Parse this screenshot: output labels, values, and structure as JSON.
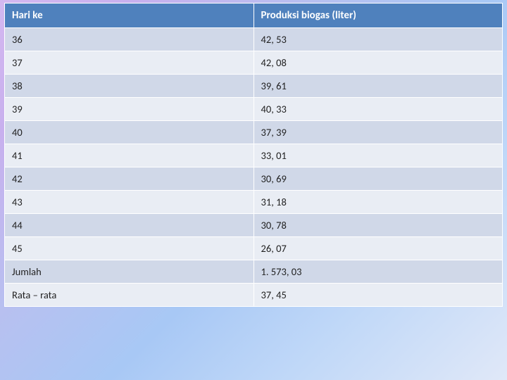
{
  "table": {
    "columns": [
      "Hari ke",
      "Produksi biogas (liter)"
    ],
    "rows": [
      [
        "36",
        "42, 53"
      ],
      [
        "37",
        "42, 08"
      ],
      [
        "38",
        "39, 61"
      ],
      [
        "39",
        "40, 33"
      ],
      [
        "40",
        "37, 39"
      ],
      [
        "41",
        "33, 01"
      ],
      [
        "42",
        "30, 69"
      ],
      [
        "43",
        "31, 18"
      ],
      [
        "44",
        "30, 78"
      ],
      [
        "45",
        "26, 07"
      ],
      [
        "Jumlah",
        "1. 573, 03"
      ],
      [
        "Rata – rata",
        "37, 45"
      ]
    ],
    "header_bg": "#4f81bd",
    "header_fg": "#ffffff",
    "row_odd_bg": "#d0d8e8",
    "row_even_bg": "#e9edf4",
    "border_color": "#ffffff",
    "font_family": "Calibri",
    "header_fontsize": 15,
    "cell_fontsize": 14.5,
    "col_widths": [
      "50%",
      "50%"
    ]
  },
  "background_gradient": [
    "#d4b8f0",
    "#c8b0ee",
    "#b8c0f0",
    "#a8c8f5",
    "#c0d8f8",
    "#e0e8f8"
  ]
}
